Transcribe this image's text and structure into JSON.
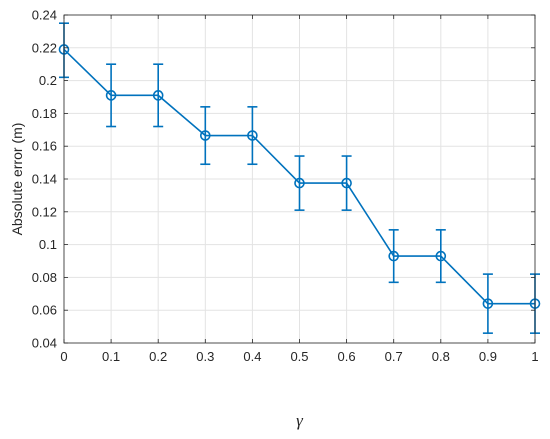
{
  "chart_data": {
    "type": "line",
    "title": "",
    "xlabel": "γ",
    "ylabel": "Absolute error (m)",
    "xlim": [
      0,
      1
    ],
    "ylim": [
      0.04,
      0.24
    ],
    "xticks": [
      0,
      0.1,
      0.2,
      0.3,
      0.4,
      0.5,
      0.6,
      0.7,
      0.8,
      0.9,
      1
    ],
    "xtick_labels": [
      "0",
      "0.1",
      "0.2",
      "0.3",
      "0.4",
      "0.5",
      "0.6",
      "0.7",
      "0.8",
      "0.9",
      "1"
    ],
    "yticks": [
      0.04,
      0.06,
      0.08,
      0.1,
      0.12,
      0.14,
      0.16,
      0.18,
      0.2,
      0.22,
      0.24
    ],
    "ytick_labels": [
      "0.04",
      "0.06",
      "0.08",
      "0.1",
      "0.12",
      "0.14",
      "0.16",
      "0.18",
      "0.2",
      "0.22",
      "0.24"
    ],
    "grid": true,
    "color": "#0072BD",
    "series": [
      {
        "x": [
          0,
          0.1,
          0.2,
          0.3,
          0.4,
          0.5,
          0.6,
          0.7,
          0.8,
          0.9,
          1
        ],
        "y": [
          0.219,
          0.191,
          0.191,
          0.1665,
          0.1665,
          0.1375,
          0.1375,
          0.093,
          0.093,
          0.064,
          0.064
        ],
        "err_low": [
          0.202,
          0.172,
          0.172,
          0.149,
          0.149,
          0.121,
          0.121,
          0.077,
          0.077,
          0.046,
          0.046
        ],
        "err_high": [
          0.235,
          0.21,
          0.21,
          0.184,
          0.184,
          0.154,
          0.154,
          0.109,
          0.109,
          0.082,
          0.082
        ],
        "marker": "circle"
      }
    ]
  }
}
